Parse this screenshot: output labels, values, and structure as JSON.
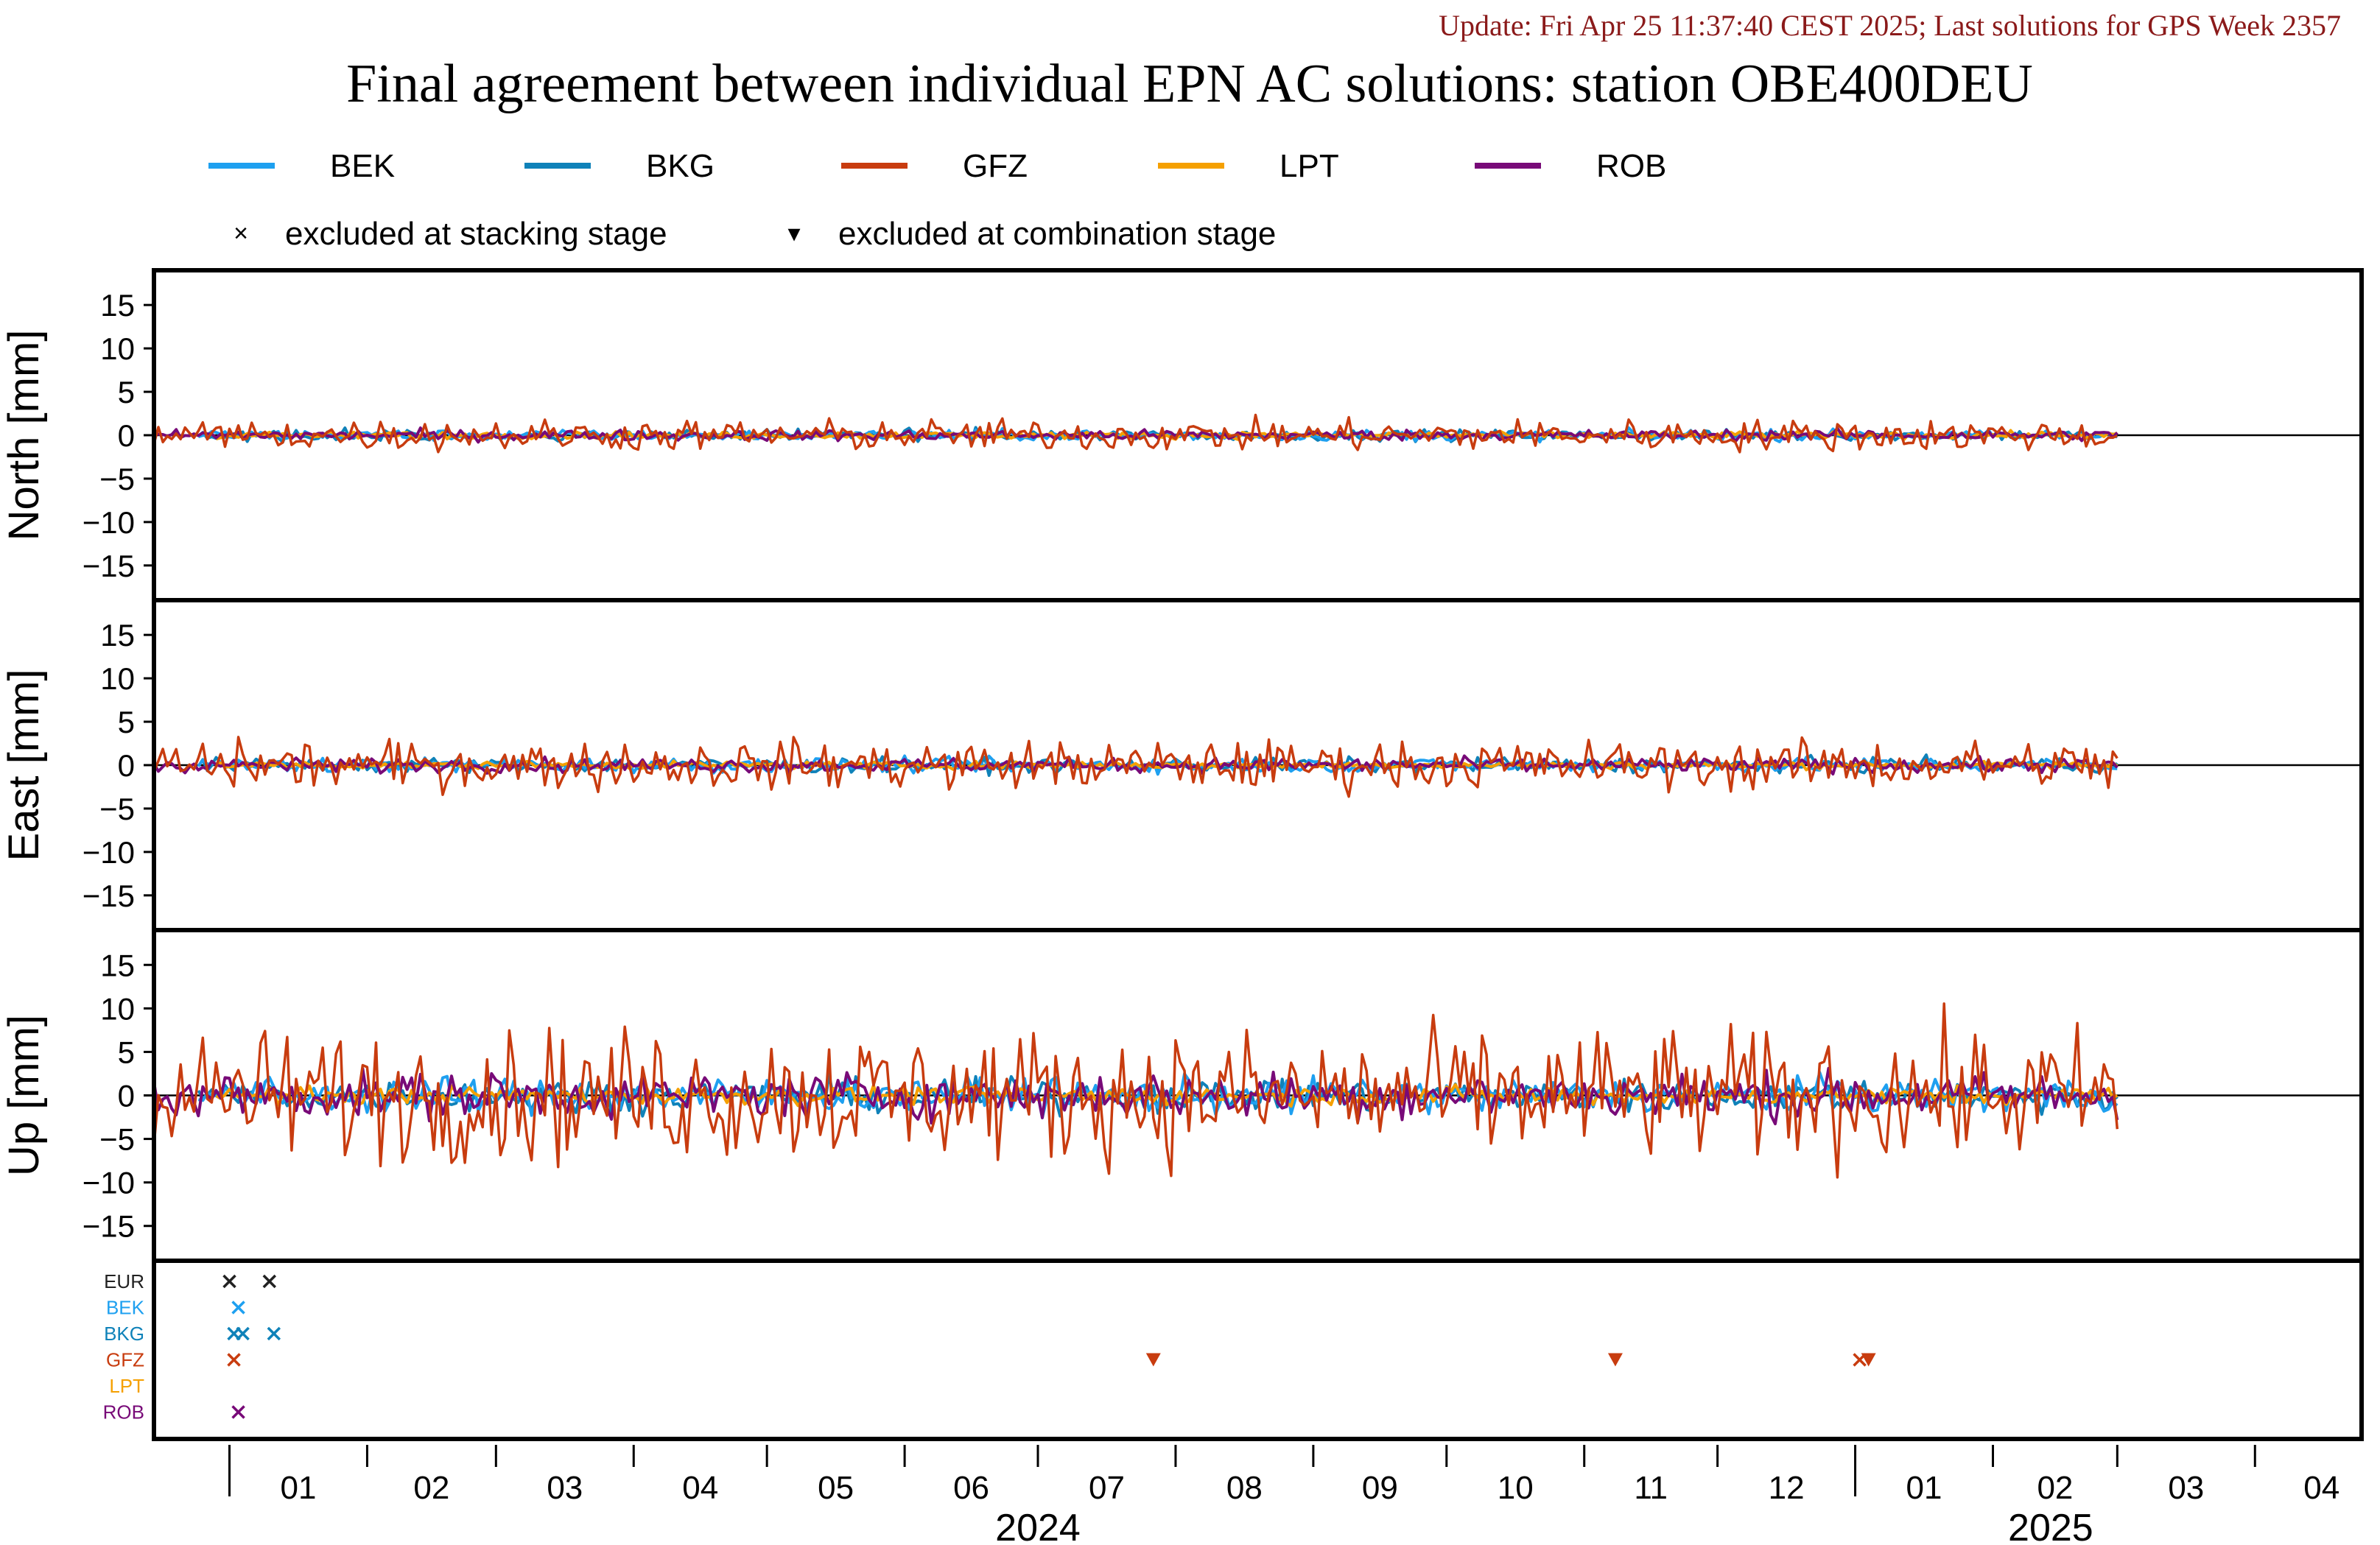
{
  "update_text": "Update: Fri Apr 25 11:37:40 CEST 2025; Last solutions for GPS Week 2357",
  "title": "Final agreement between individual EPN AC solutions: station OBE400DEU",
  "legend": {
    "series": [
      {
        "name": "BEK",
        "color": "#1ea0f0"
      },
      {
        "name": "BKG",
        "color": "#0f82b9"
      },
      {
        "name": "GFZ",
        "color": "#c83c0f"
      },
      {
        "name": "LPT",
        "color": "#f5a000"
      },
      {
        "name": "ROB",
        "color": "#780a78"
      }
    ],
    "markers": [
      {
        "symbol": "×",
        "label": "excluded at stacking stage"
      },
      {
        "symbol": "▾",
        "label": "excluded at combination stage"
      }
    ]
  },
  "chart_data": {
    "type": "line",
    "x_axis": {
      "start": "2023-12-15",
      "end": "2025-04-25",
      "tick_labels": [
        "01",
        "02",
        "03",
        "04",
        "05",
        "06",
        "07",
        "08",
        "09",
        "10",
        "11",
        "12",
        "01",
        "02",
        "03",
        "04"
      ],
      "year_labels": [
        "2024",
        "2025"
      ]
    },
    "panels": [
      {
        "ylabel": "North [mm]",
        "ylim": [
          -19,
          19
        ],
        "yticks": [
          15,
          10,
          5,
          0,
          -5,
          -10,
          -15
        ],
        "amplitude": {
          "BEK": 0.3,
          "BKG": 0.3,
          "GFZ": 0.9,
          "LPT": 0.2,
          "ROB": 0.3
        }
      },
      {
        "ylabel": "East [mm]",
        "ylim": [
          -19,
          19
        ],
        "yticks": [
          15,
          10,
          5,
          0,
          -5,
          -10,
          -15
        ],
        "amplitude": {
          "BEK": 0.4,
          "BKG": 0.4,
          "GFZ": 1.4,
          "LPT": 0.2,
          "ROB": 0.4
        }
      },
      {
        "ylabel": "Up [mm]",
        "ylim": [
          -19,
          19
        ],
        "yticks": [
          15,
          10,
          5,
          0,
          -5,
          -10,
          -15
        ],
        "amplitude": {
          "BEK": 1.0,
          "BKG": 0.9,
          "GFZ": 3.8,
          "LPT": 0.5,
          "ROB": 1.3
        }
      }
    ],
    "exclusion_panel": {
      "rows": [
        {
          "name": "EUR",
          "color": "#222222"
        },
        {
          "name": "BEK",
          "color": "#1ea0f0"
        },
        {
          "name": "BKG",
          "color": "#0f82b9"
        },
        {
          "name": "GFZ",
          "color": "#c83c0f"
        },
        {
          "name": "LPT",
          "color": "#f5a000"
        },
        {
          "name": "ROB",
          "color": "#780a78"
        }
      ],
      "markers": [
        {
          "row": "EUR",
          "date": "2024-01-01",
          "type": "x"
        },
        {
          "row": "EUR",
          "date": "2024-01-10",
          "type": "x"
        },
        {
          "row": "BEK",
          "date": "2024-01-03",
          "type": "x"
        },
        {
          "row": "BKG",
          "date": "2024-01-02",
          "type": "x"
        },
        {
          "row": "BKG",
          "date": "2024-01-04",
          "type": "x"
        },
        {
          "row": "BKG",
          "date": "2024-01-11",
          "type": "x"
        },
        {
          "row": "GFZ",
          "date": "2024-01-02",
          "type": "x"
        },
        {
          "row": "GFZ",
          "date": "2024-07-27",
          "type": "triangle"
        },
        {
          "row": "GFZ",
          "date": "2024-11-08",
          "type": "triangle"
        },
        {
          "row": "GFZ",
          "date": "2025-01-02",
          "type": "x"
        },
        {
          "row": "GFZ",
          "date": "2025-01-04",
          "type": "triangle"
        },
        {
          "row": "ROB",
          "date": "2024-01-03",
          "type": "x"
        }
      ]
    }
  }
}
